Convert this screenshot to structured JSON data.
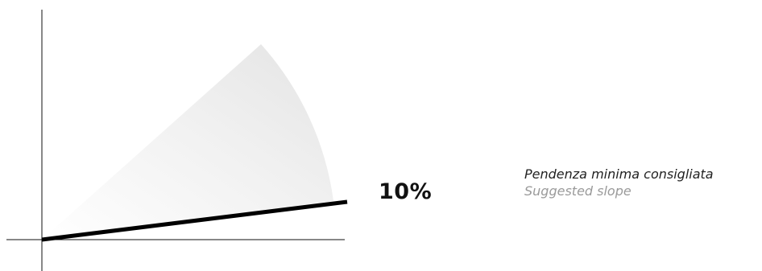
{
  "diagram": {
    "slope_value": "10%",
    "caption": {
      "italian": "Pendenza minima consigliata",
      "english": "Suggested slope"
    },
    "colors": {
      "axis": "#111111",
      "slope_line": "#000000",
      "sector_fill_light": "#e6e6e6",
      "text_primary": "#111111",
      "text_secondary": "#9a9a9a"
    }
  }
}
